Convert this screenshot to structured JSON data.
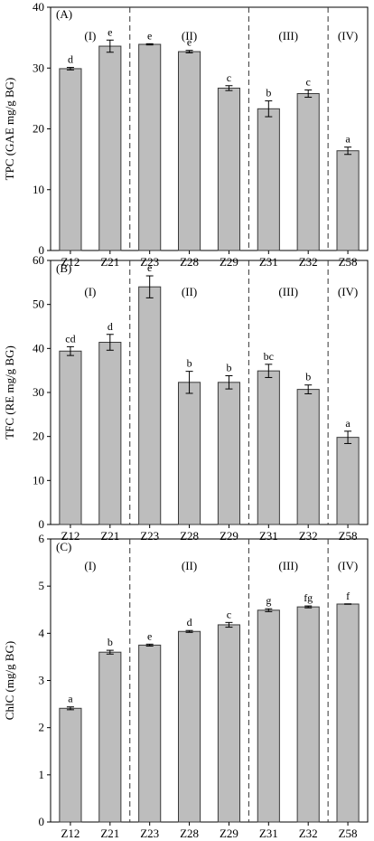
{
  "chart_data": [
    {
      "type": "bar",
      "panel_label": "(A)",
      "ylabel": "TPC (GAE mg/g BG)",
      "ylim": [
        0,
        40
      ],
      "yticks": [
        0,
        10,
        20,
        30,
        40
      ],
      "categories": [
        "Z12",
        "Z21",
        "Z23",
        "Z28",
        "Z29",
        "Z31",
        "Z32",
        "Z58"
      ],
      "values": [
        29.9,
        33.6,
        33.9,
        32.7,
        26.7,
        23.3,
        25.8,
        16.4
      ],
      "errors": [
        0.2,
        1.0,
        0.1,
        0.2,
        0.4,
        1.3,
        0.6,
        0.6
      ],
      "sig_letters": [
        "d",
        "e",
        "e",
        "e",
        "c",
        "b",
        "c",
        "a"
      ],
      "groups": [
        {
          "label": "(I)",
          "from": 0,
          "to": 1
        },
        {
          "label": "(II)",
          "from": 2,
          "to": 4
        },
        {
          "label": "(III)",
          "from": 5,
          "to": 6
        },
        {
          "label": "(IV)",
          "from": 7,
          "to": 7
        }
      ],
      "dividers_after": [
        1,
        4,
        6
      ],
      "grid": false
    },
    {
      "type": "bar",
      "panel_label": "(B)",
      "ylabel": "TFC (RE mg/g BG)",
      "ylim": [
        0,
        60
      ],
      "yticks": [
        0,
        10,
        20,
        30,
        40,
        50,
        60
      ],
      "categories": [
        "Z12",
        "Z21",
        "Z23",
        "Z28",
        "Z29",
        "Z31",
        "Z32",
        "Z58"
      ],
      "values": [
        39.4,
        41.4,
        54.0,
        32.3,
        32.3,
        34.9,
        30.7,
        19.8
      ],
      "errors": [
        1.0,
        1.8,
        2.5,
        2.5,
        1.5,
        1.5,
        1.0,
        1.4
      ],
      "sig_letters": [
        "cd",
        "d",
        "e",
        "b",
        "b",
        "bc",
        "b",
        "a"
      ],
      "groups": [
        {
          "label": "(I)",
          "from": 0,
          "to": 1
        },
        {
          "label": "(II)",
          "from": 2,
          "to": 4
        },
        {
          "label": "(III)",
          "from": 5,
          "to": 6
        },
        {
          "label": "(IV)",
          "from": 7,
          "to": 7
        }
      ],
      "dividers_after": [
        1,
        4,
        6
      ],
      "grid": false
    },
    {
      "type": "bar",
      "panel_label": "(C)",
      "ylabel": "ChlC (mg/g BG)",
      "ylim": [
        0,
        6
      ],
      "yticks": [
        0,
        1,
        2,
        3,
        4,
        5,
        6
      ],
      "categories": [
        "Z12",
        "Z21",
        "Z23",
        "Z28",
        "Z29",
        "Z31",
        "Z32",
        "Z58"
      ],
      "values": [
        2.41,
        3.6,
        3.75,
        4.04,
        4.18,
        4.49,
        4.56,
        4.62
      ],
      "errors": [
        0.03,
        0.04,
        0.02,
        0.02,
        0.05,
        0.03,
        0.02,
        0.0
      ],
      "sig_letters": [
        "a",
        "b",
        "e",
        "d",
        "c",
        "g",
        "fg",
        "f"
      ],
      "groups": [
        {
          "label": "(I)",
          "from": 0,
          "to": 1
        },
        {
          "label": "(II)",
          "from": 2,
          "to": 4
        },
        {
          "label": "(III)",
          "from": 5,
          "to": 6
        },
        {
          "label": "(IV)",
          "from": 7,
          "to": 7
        }
      ],
      "dividers_after": [
        1,
        4,
        6
      ],
      "grid": false
    }
  ],
  "colors": {
    "bar_fill": "#bdbdbd",
    "bar_stroke": "#3a3a3a",
    "axis": "#000000",
    "divider": "#333333"
  }
}
